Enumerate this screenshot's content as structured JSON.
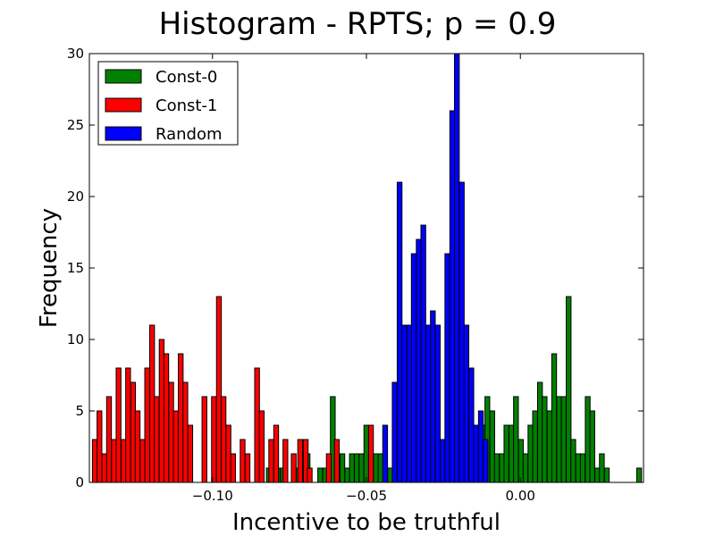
{
  "chart_data": {
    "type": "bar",
    "title": "Histogram - RPTS;  p = 0.9",
    "xlabel": "Incentive to be truthful",
    "ylabel": "Frequency",
    "xlim": [
      -0.14,
      0.04
    ],
    "ylim": [
      0,
      30
    ],
    "xticks": [
      {
        "value": -0.1,
        "label": "−0.10"
      },
      {
        "value": -0.05,
        "label": "−0.05"
      },
      {
        "value": 0.0,
        "label": "0.00"
      }
    ],
    "yticks": [
      {
        "value": 0,
        "label": "0"
      },
      {
        "value": 5,
        "label": "5"
      },
      {
        "value": 10,
        "label": "10"
      },
      {
        "value": 15,
        "label": "15"
      },
      {
        "value": 20,
        "label": "20"
      },
      {
        "value": 25,
        "label": "25"
      },
      {
        "value": 30,
        "label": "30"
      }
    ],
    "bin_width": 0.00155,
    "legend_position": "upper-left",
    "grid": false,
    "series": [
      {
        "name": "Const-0",
        "color": "#008000",
        "bins": [
          [
            -0.0825,
            1
          ],
          [
            -0.0795,
            1
          ],
          [
            -0.0779,
            1
          ],
          [
            -0.0735,
            1
          ],
          [
            -0.0715,
            2
          ],
          [
            -0.0699,
            2
          ],
          [
            -0.0658,
            1
          ],
          [
            -0.0642,
            1
          ],
          [
            -0.0617,
            6
          ],
          [
            -0.0601,
            1
          ],
          [
            -0.0586,
            2
          ],
          [
            -0.057,
            1
          ],
          [
            -0.0555,
            2
          ],
          [
            -0.0539,
            2
          ],
          [
            -0.0524,
            2
          ],
          [
            -0.0508,
            4
          ],
          [
            -0.0493,
            2
          ],
          [
            -0.0477,
            2
          ],
          [
            -0.0462,
            2
          ],
          [
            -0.0446,
            1
          ],
          [
            -0.0431,
            1
          ],
          [
            -0.04,
            1
          ],
          [
            -0.0385,
            5
          ],
          [
            -0.0369,
            6
          ],
          [
            -0.0354,
            3
          ],
          [
            -0.0339,
            2
          ],
          [
            -0.0285,
            1
          ],
          [
            -0.0207,
            2
          ],
          [
            -0.0192,
            5
          ],
          [
            -0.0176,
            5
          ],
          [
            -0.0161,
            4
          ],
          [
            -0.0146,
            4
          ],
          [
            -0.013,
            4
          ],
          [
            -0.0115,
            6
          ],
          [
            -0.0099,
            5
          ],
          [
            -0.0084,
            2
          ],
          [
            -0.0068,
            2
          ],
          [
            -0.0053,
            4
          ],
          [
            -0.0037,
            4
          ],
          [
            -0.0022,
            6
          ],
          [
            -0.0006,
            3
          ],
          [
            0.0009,
            2
          ],
          [
            0.0025,
            4
          ],
          [
            0.004,
            5
          ],
          [
            0.0056,
            7
          ],
          [
            0.0071,
            6
          ],
          [
            0.0087,
            5
          ],
          [
            0.0102,
            9
          ],
          [
            0.0118,
            6
          ],
          [
            0.0133,
            6
          ],
          [
            0.0149,
            13
          ],
          [
            0.0164,
            3
          ],
          [
            0.018,
            2
          ],
          [
            0.0195,
            2
          ],
          [
            0.0211,
            6
          ],
          [
            0.0226,
            5
          ],
          [
            0.0242,
            1
          ],
          [
            0.0257,
            2
          ],
          [
            0.0273,
            1
          ],
          [
            0.0378,
            1
          ]
        ]
      },
      {
        "name": "Const-1",
        "color": "#ff0000",
        "bins": [
          [
            -0.139,
            3
          ],
          [
            -0.1375,
            5
          ],
          [
            -0.1359,
            2
          ],
          [
            -0.1344,
            6
          ],
          [
            -0.1328,
            3
          ],
          [
            -0.1313,
            8
          ],
          [
            -0.1297,
            3
          ],
          [
            -0.1282,
            8
          ],
          [
            -0.1266,
            7
          ],
          [
            -0.1251,
            5
          ],
          [
            -0.1235,
            3
          ],
          [
            -0.122,
            8
          ],
          [
            -0.1204,
            11
          ],
          [
            -0.1189,
            6
          ],
          [
            -0.1173,
            10
          ],
          [
            -0.1158,
            9
          ],
          [
            -0.1142,
            7
          ],
          [
            -0.1127,
            5
          ],
          [
            -0.1111,
            9
          ],
          [
            -0.1096,
            7
          ],
          [
            -0.108,
            4
          ],
          [
            -0.1034,
            6
          ],
          [
            -0.1003,
            6
          ],
          [
            -0.0987,
            13
          ],
          [
            -0.0972,
            6
          ],
          [
            -0.0956,
            4
          ],
          [
            -0.0941,
            2
          ],
          [
            -0.091,
            3
          ],
          [
            -0.0894,
            2
          ],
          [
            -0.0863,
            8
          ],
          [
            -0.0848,
            5
          ],
          [
            -0.0817,
            3
          ],
          [
            -0.0801,
            4
          ],
          [
            -0.0771,
            3
          ],
          [
            -0.0744,
            2
          ],
          [
            -0.0723,
            3
          ],
          [
            -0.0705,
            3
          ],
          [
            -0.0692,
            1
          ],
          [
            -0.063,
            2
          ],
          [
            -0.0604,
            3
          ],
          [
            -0.0493,
            4
          ]
        ]
      },
      {
        "name": "Random",
        "color": "#0000ff",
        "bins": [
          [
            -0.0447,
            4
          ],
          [
            -0.0416,
            7
          ],
          [
            -0.04,
            21
          ],
          [
            -0.0385,
            11
          ],
          [
            -0.0369,
            11
          ],
          [
            -0.0354,
            16
          ],
          [
            -0.0338,
            17
          ],
          [
            -0.0323,
            18
          ],
          [
            -0.0307,
            11
          ],
          [
            -0.0292,
            12
          ],
          [
            -0.0276,
            11
          ],
          [
            -0.026,
            3
          ],
          [
            -0.0245,
            16
          ],
          [
            -0.0229,
            26
          ],
          [
            -0.0214,
            30
          ],
          [
            -0.0198,
            21
          ],
          [
            -0.0183,
            11
          ],
          [
            -0.0167,
            8
          ],
          [
            -0.0152,
            4
          ],
          [
            -0.0136,
            5
          ],
          [
            -0.0121,
            3
          ]
        ]
      }
    ]
  }
}
